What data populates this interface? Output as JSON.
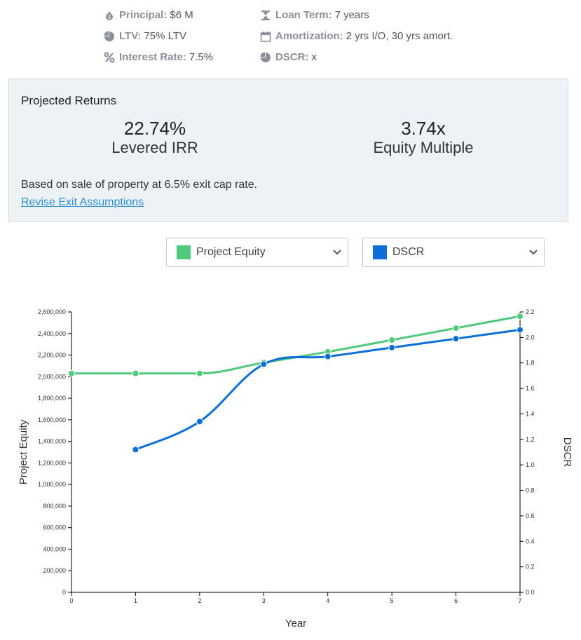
{
  "loan_terms": {
    "principal": {
      "label": "Principal:",
      "value": "$6 M",
      "icon": "money-bag-icon"
    },
    "ltv": {
      "label": "LTV:",
      "value": "75% LTV",
      "icon": "pie-chart-icon"
    },
    "interest_rate": {
      "label": "Interest Rate:",
      "value": "7.5%",
      "icon": "percent-icon"
    },
    "loan_term": {
      "label": "Loan Term:",
      "value": "7 years",
      "icon": "hourglass-icon"
    },
    "amortization": {
      "label": "Amortization:",
      "value": "2 yrs I/O, 30 yrs amort.",
      "icon": "calendar-icon"
    },
    "dscr": {
      "label": "DSCR:",
      "value": "x",
      "icon": "pie-chart-icon"
    }
  },
  "projected_returns": {
    "title": "Projected Returns",
    "irr_value": "22.74%",
    "irr_label": "Levered IRR",
    "multiple_value": "3.74x",
    "multiple_label": "Equity Multiple",
    "note": "Based on sale of property at 6.5% exit cap rate.",
    "revise_link": "Revise Exit Assumptions"
  },
  "selectors": {
    "left": {
      "label": "Project Equity",
      "color": "#4fc97a"
    },
    "right": {
      "label": "DSCR",
      "color": "#0c6fd9"
    }
  },
  "chart_data": {
    "type": "line",
    "xlabel": "Year",
    "ylabel": "Project Equity",
    "y2label": "DSCR",
    "x": [
      0,
      1,
      2,
      3,
      4,
      5,
      6,
      7
    ],
    "xlim": [
      0,
      7
    ],
    "ylim": [
      0,
      2600000
    ],
    "y2lim": [
      0,
      2.2
    ],
    "y_ticks": [
      "0",
      "200,000",
      "400,000",
      "600,000",
      "800,000",
      "1,000,000",
      "1,200,000",
      "1,400,000",
      "1,600,000",
      "1,800,000",
      "2,000,000",
      "2,200,000",
      "2,400,000",
      "2,600,000"
    ],
    "y2_ticks": [
      "0.0",
      "0.2",
      "0.4",
      "0.6",
      "0.8",
      "1.0",
      "1.2",
      "1.4",
      "1.6",
      "1.8",
      "2.0",
      "2.2"
    ],
    "grid": false,
    "series": [
      {
        "name": "Project Equity",
        "axis": "left",
        "color": "#4fc97a",
        "x": [
          0,
          1,
          2,
          3,
          4,
          5,
          6,
          7
        ],
        "values": [
          2030000,
          2030000,
          2030000,
          2130000,
          2230000,
          2340000,
          2450000,
          2560000
        ]
      },
      {
        "name": "DSCR",
        "axis": "right",
        "color": "#0c6fd9",
        "x": [
          1,
          2,
          3,
          4,
          5,
          6,
          7
        ],
        "values": [
          1.12,
          1.34,
          1.79,
          1.85,
          1.92,
          1.99,
          2.06
        ]
      }
    ]
  }
}
